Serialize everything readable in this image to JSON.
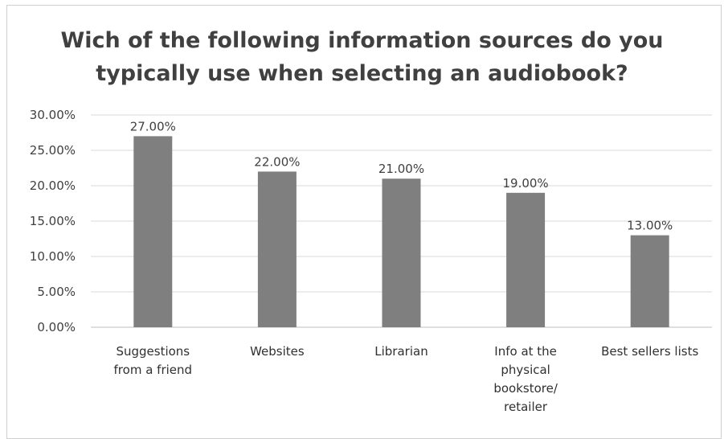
{
  "chart_data": {
    "type": "bar",
    "title": "Wich of the following information sources do you typically use when selecting an audiobook?",
    "title_lines": [
      "Wich of the following information sources do you",
      "typically use when selecting an audiobook?"
    ],
    "categories": [
      "Suggestions from a friend",
      "Websites",
      "Librarian",
      "Info at the physical bookstore/ retailer",
      "Best sellers lists"
    ],
    "category_lines": [
      [
        "Suggestions",
        "from a friend"
      ],
      [
        "Websites"
      ],
      [
        "Librarian"
      ],
      [
        "Info at the",
        "physical",
        "bookstore/",
        "retailer"
      ],
      [
        "Best sellers lists"
      ]
    ],
    "values": [
      27.0,
      22.0,
      21.0,
      19.0,
      13.0
    ],
    "data_labels": [
      "27.00%",
      "22.00%",
      "21.00%",
      "19.00%",
      "13.00%"
    ],
    "yticks": [
      "0.00%",
      "5.00%",
      "10.00%",
      "15.00%",
      "20.00%",
      "25.00%",
      "30.00%"
    ],
    "ylim": [
      0,
      30
    ],
    "xlabel": "",
    "ylabel": "",
    "grid": true,
    "legend": "none",
    "bar_color": "#7f7f7f",
    "grid_color": "#d9d9d9",
    "axis_color": "#bfbfbf"
  }
}
